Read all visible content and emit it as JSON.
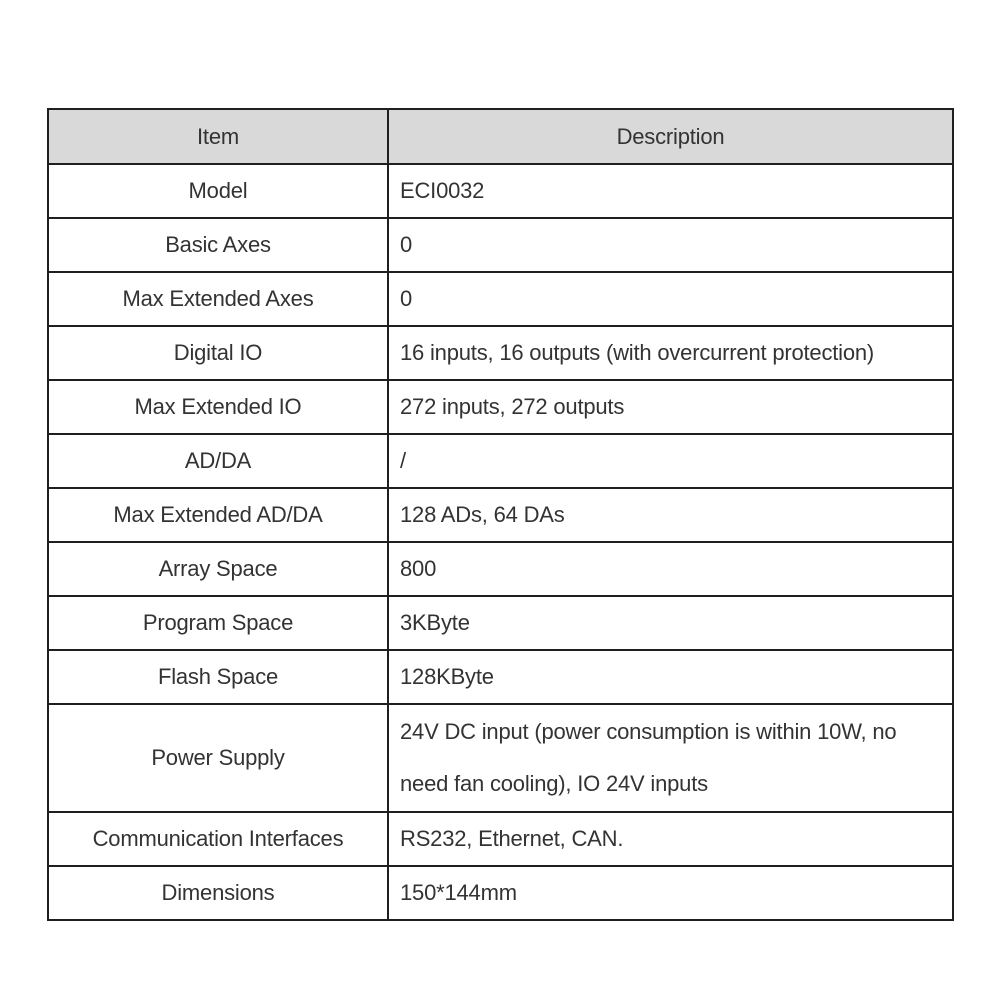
{
  "page": {
    "background_color": "#ffffff"
  },
  "table": {
    "colors": {
      "header_background": "#d9d9d9",
      "border": "#1f1f1f",
      "text": "#333333"
    },
    "columns": [
      {
        "label": "Item"
      },
      {
        "label": "Description"
      }
    ],
    "rows": [
      {
        "item": "Model",
        "description": "ECI0032"
      },
      {
        "item": "Basic Axes",
        "description": "0"
      },
      {
        "item": "Max Extended Axes",
        "description": "0"
      },
      {
        "item": "Digital IO",
        "description": "16 inputs, 16 outputs (with overcurrent protection)"
      },
      {
        "item": "Max Extended IO",
        "description": "272 inputs, 272 outputs"
      },
      {
        "item": "AD/DA",
        "description": "/"
      },
      {
        "item": "Max Extended AD/DA",
        "description": "128 ADs, 64 DAs"
      },
      {
        "item": "Array Space",
        "description": "800"
      },
      {
        "item": "Program Space",
        "description": "3KByte"
      },
      {
        "item": "Flash Space",
        "description": "128KByte"
      },
      {
        "item": "Power Supply",
        "description": "24V DC input (power consumption is within 10W, no\nneed fan cooling), IO 24V inputs"
      },
      {
        "item": "Communication Interfaces",
        "description": "RS232, Ethernet, CAN."
      },
      {
        "item": "Dimensions",
        "description": "150*144mm"
      }
    ]
  }
}
